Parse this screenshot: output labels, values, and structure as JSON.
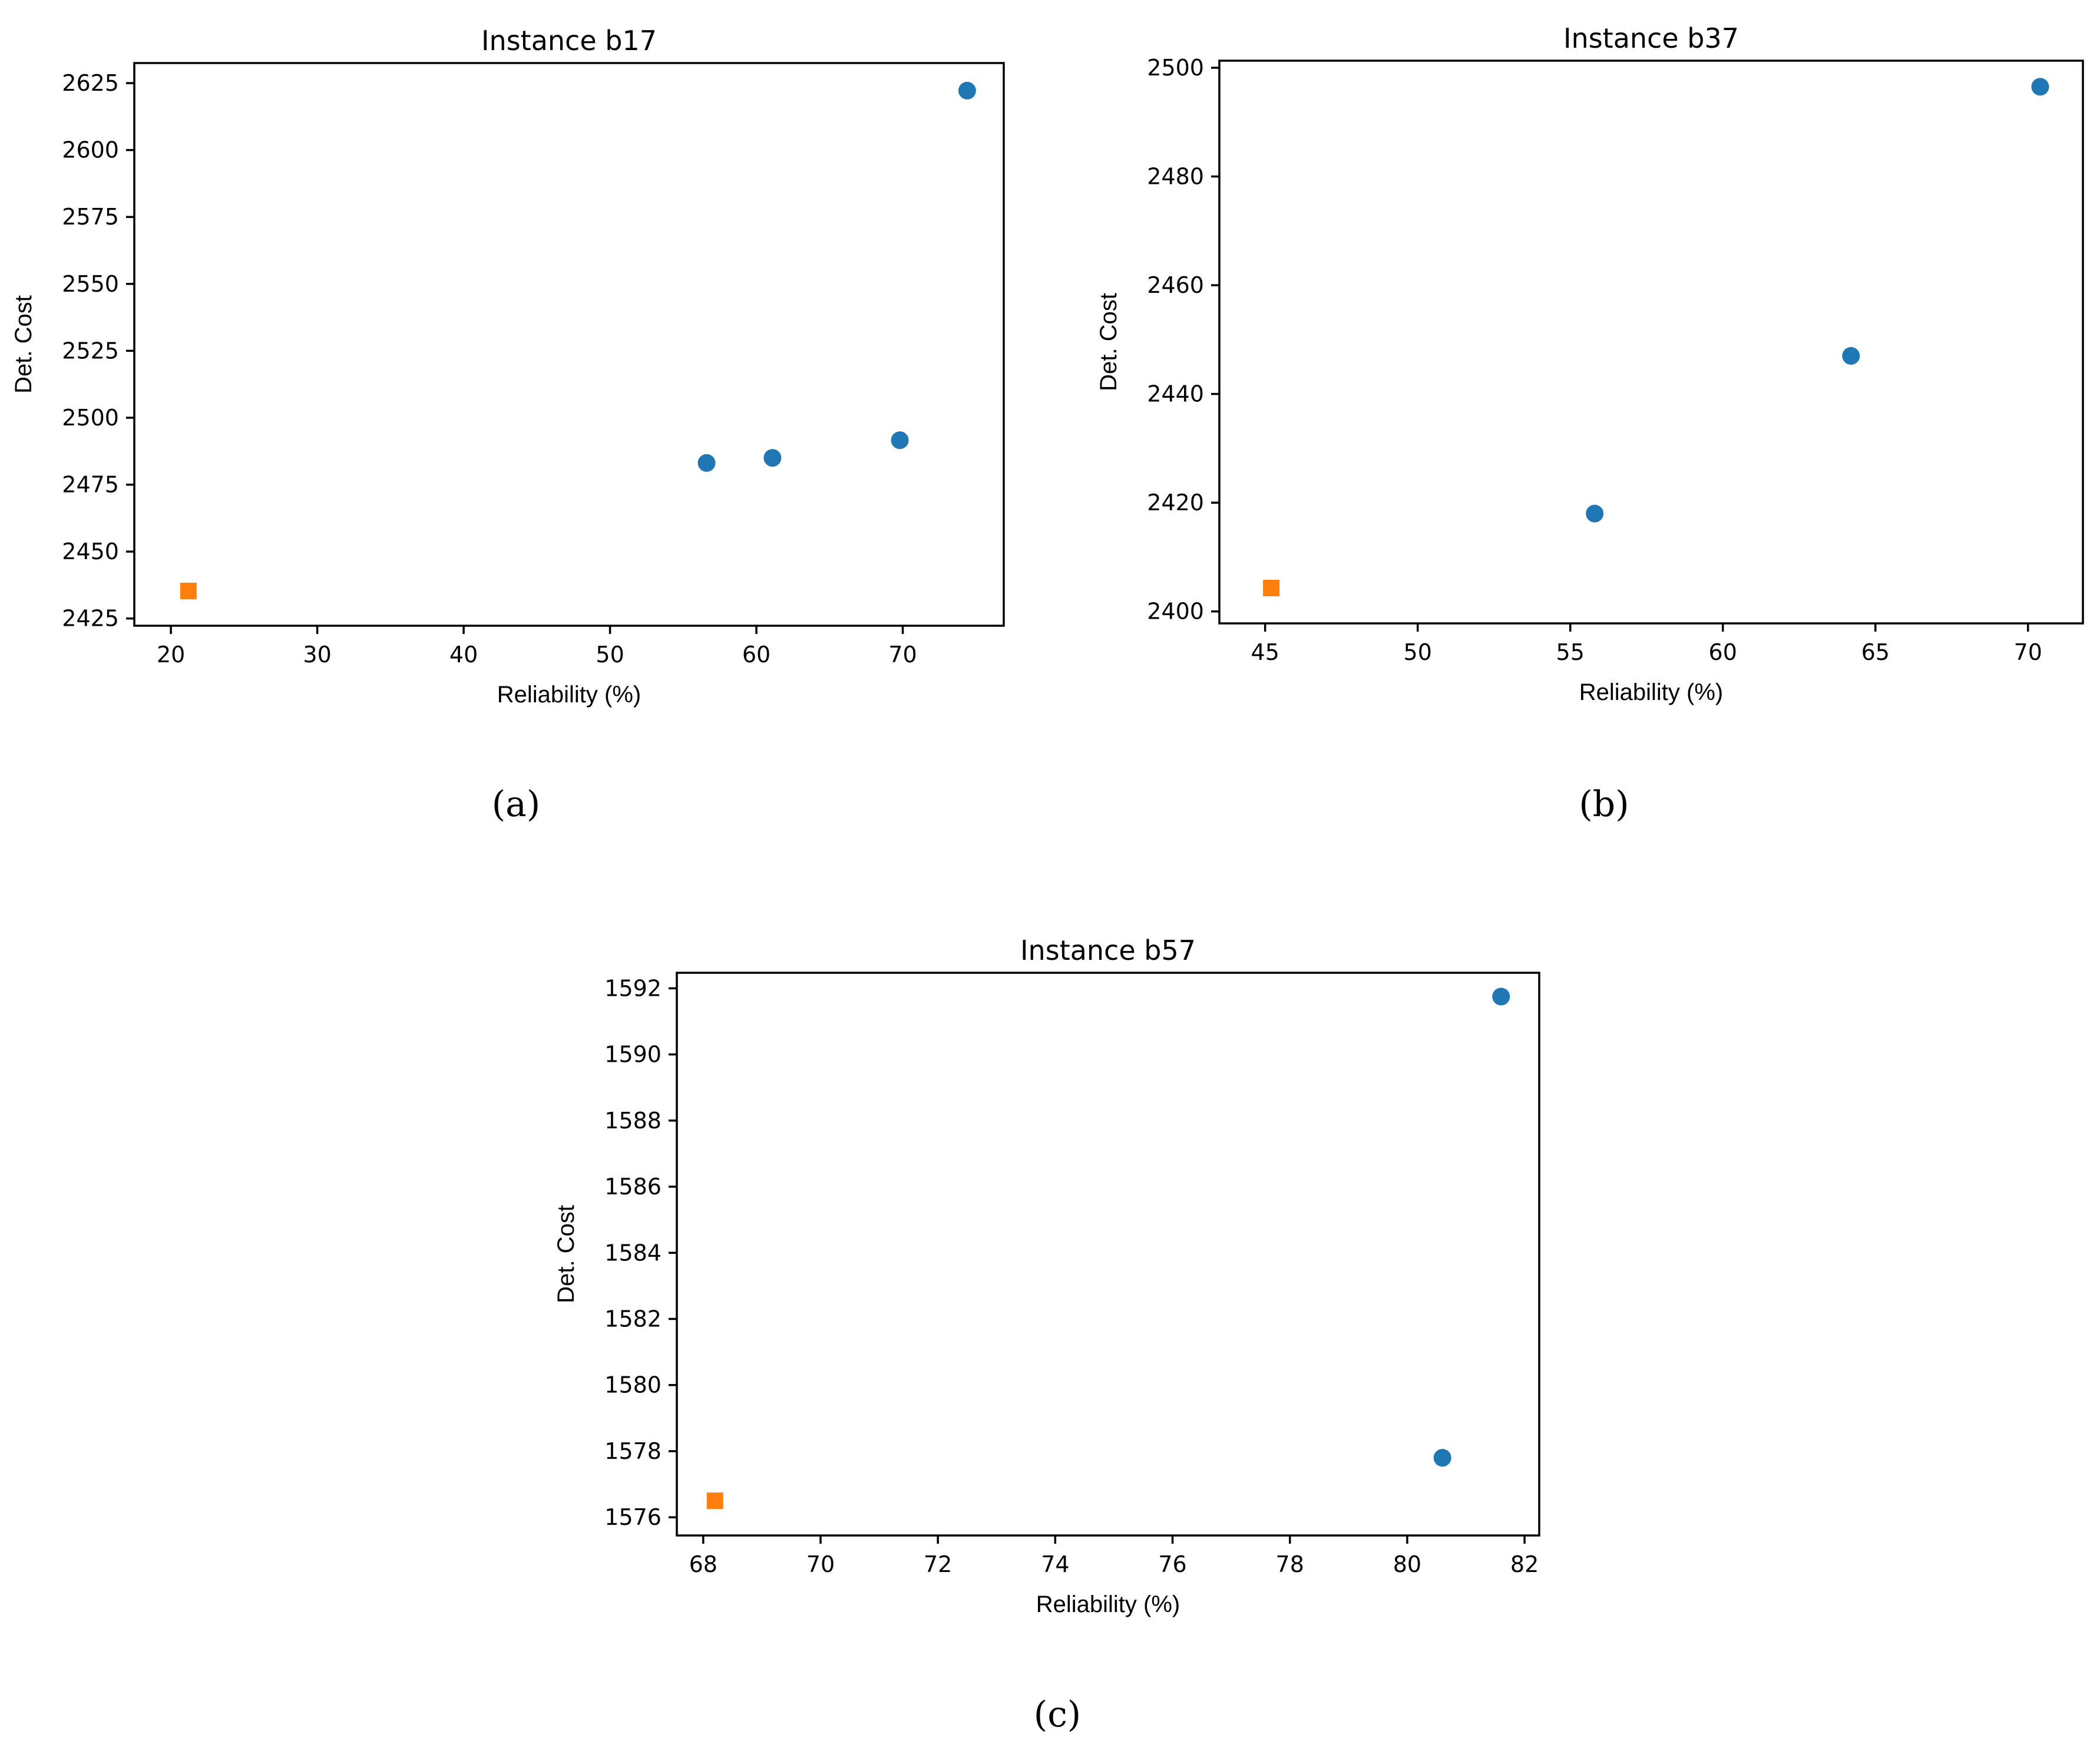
{
  "chart_data": [
    {
      "type": "scatter",
      "title": "Instance b17",
      "xlabel": "Reliability (%)",
      "ylabel": "Det. Cost",
      "caption": "(a)",
      "xlim": [
        17.5,
        76.9
      ],
      "ylim": [
        2422.3,
        2632.5
      ],
      "xticks": [
        20,
        30,
        40,
        50,
        60,
        70
      ],
      "yticks": [
        2425,
        2450,
        2475,
        2500,
        2525,
        2550,
        2575,
        2600,
        2625
      ],
      "series": [
        {
          "name": "circles",
          "marker": "circle",
          "color": "#1f77b4",
          "points": [
            {
              "x": 56.6,
              "y": 2483.1
            },
            {
              "x": 61.1,
              "y": 2485.0
            },
            {
              "x": 69.8,
              "y": 2491.6
            },
            {
              "x": 74.4,
              "y": 2622.2
            }
          ]
        },
        {
          "name": "squares",
          "marker": "square",
          "color": "#ff7f0e",
          "points": [
            {
              "x": 21.2,
              "y": 2435.3
            }
          ]
        }
      ]
    },
    {
      "type": "scatter",
      "title": "Instance b37",
      "xlabel": "Reliability (%)",
      "ylabel": "Det. Cost",
      "caption": "(b)",
      "xlim": [
        43.5,
        71.8
      ],
      "ylim": [
        2397.8,
        2501.3
      ],
      "xticks": [
        45,
        50,
        55,
        60,
        65,
        70
      ],
      "yticks": [
        2400,
        2420,
        2440,
        2460,
        2480,
        2500
      ],
      "series": [
        {
          "name": "circles",
          "marker": "circle",
          "color": "#1f77b4",
          "points": [
            {
              "x": 55.8,
              "y": 2418.0
            },
            {
              "x": 64.2,
              "y": 2447.0
            },
            {
              "x": 70.4,
              "y": 2496.5
            }
          ]
        },
        {
          "name": "squares",
          "marker": "square",
          "color": "#ff7f0e",
          "points": [
            {
              "x": 45.2,
              "y": 2404.3
            }
          ]
        }
      ]
    },
    {
      "type": "scatter",
      "title": "Instance b57",
      "xlabel": "Reliability (%)",
      "ylabel": "Det. Cost",
      "caption": "(c)",
      "xlim": [
        67.55,
        82.25
      ],
      "ylim": [
        1575.45,
        1592.47
      ],
      "xticks": [
        68,
        70,
        72,
        74,
        76,
        78,
        80,
        82
      ],
      "yticks": [
        1576,
        1578,
        1580,
        1582,
        1584,
        1586,
        1588,
        1590,
        1592
      ],
      "series": [
        {
          "name": "circles",
          "marker": "circle",
          "color": "#1f77b4",
          "points": [
            {
              "x": 80.6,
              "y": 1577.8
            },
            {
              "x": 81.6,
              "y": 1591.75
            }
          ]
        },
        {
          "name": "squares",
          "marker": "square",
          "color": "#ff7f0e",
          "points": [
            {
              "x": 68.2,
              "y": 1576.5
            }
          ]
        }
      ]
    }
  ]
}
